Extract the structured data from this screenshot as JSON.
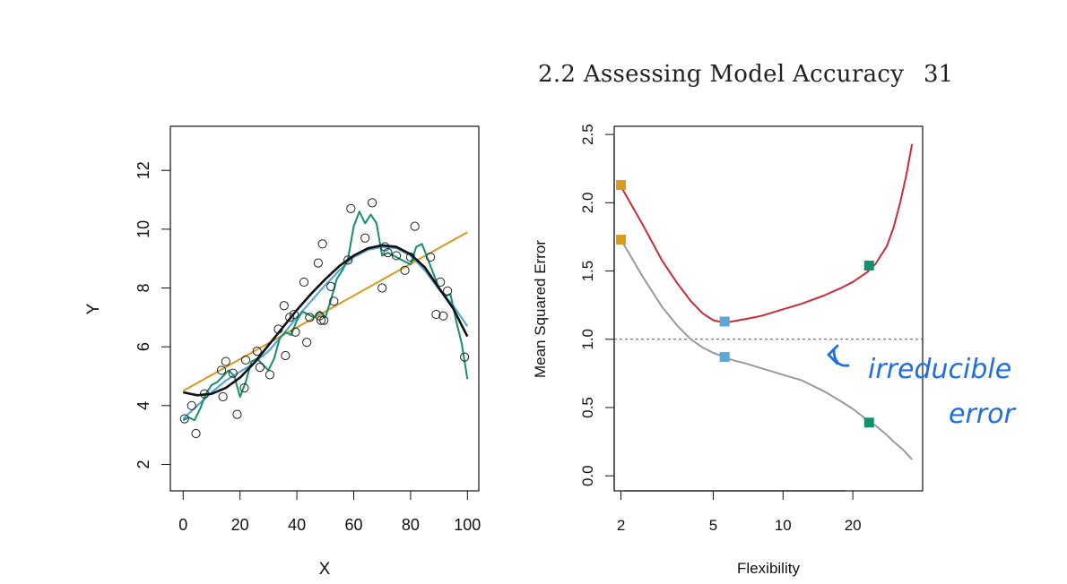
{
  "page_header": {
    "section": "2.2 Assessing Model Accuracy",
    "page_number": "31"
  },
  "colors": {
    "true_f": "#111111",
    "linear": "#d99a1f",
    "spline_smooth": "#5ba8d8",
    "spline_wiggly": "#13906e",
    "test_mse": "#cc2b37",
    "train_mse": "#9a9a9a",
    "irreducible": "#555555",
    "ink": "#1f6fe0"
  },
  "annotation": {
    "line1": "irreducible",
    "line2": "error",
    "arrow": "arrow-up-left"
  },
  "chart_data": [
    {
      "type": "scatter",
      "xlabel": "X",
      "ylabel": "Y",
      "xlim": [
        -4.5,
        104
      ],
      "ylim": [
        1.1,
        13.5
      ],
      "xticks": [
        "0",
        "20",
        "40",
        "60",
        "80",
        "100"
      ],
      "yticks": [
        "2",
        "4",
        "6",
        "8",
        "10",
        "12"
      ],
      "points": [
        [
          0.5,
          3.55
        ],
        [
          3,
          4.0
        ],
        [
          4.5,
          3.05
        ],
        [
          7.5,
          4.4
        ],
        [
          13.5,
          5.2
        ],
        [
          14,
          4.3
        ],
        [
          15,
          5.5
        ],
        [
          17.5,
          5.1
        ],
        [
          19,
          3.7
        ],
        [
          21.5,
          4.6
        ],
        [
          22,
          5.55
        ],
        [
          26,
          5.85
        ],
        [
          27,
          5.3
        ],
        [
          30.5,
          5.05
        ],
        [
          33.5,
          6.6
        ],
        [
          35.5,
          7.4
        ],
        [
          36,
          5.7
        ],
        [
          37.5,
          7.0
        ],
        [
          39,
          7.1
        ],
        [
          39.5,
          6.5
        ],
        [
          42.5,
          8.2
        ],
        [
          43.5,
          6.15
        ],
        [
          44.5,
          7.0
        ],
        [
          47.5,
          8.85
        ],
        [
          48,
          7.05
        ],
        [
          48.5,
          6.9
        ],
        [
          49,
          9.5
        ],
        [
          49.5,
          6.9
        ],
        [
          52,
          8.05
        ],
        [
          53,
          7.55
        ],
        [
          58,
          8.95
        ],
        [
          59,
          10.7
        ],
        [
          64,
          9.7
        ],
        [
          66.5,
          10.9
        ],
        [
          70,
          8.0
        ],
        [
          71,
          9.4
        ],
        [
          72,
          9.2
        ],
        [
          75,
          9.1
        ],
        [
          78,
          8.6
        ],
        [
          80,
          9.05
        ],
        [
          81.5,
          10.1
        ],
        [
          87,
          9.05
        ],
        [
          89,
          7.1
        ],
        [
          90.5,
          8.2
        ],
        [
          91.5,
          7.05
        ],
        [
          93,
          7.9
        ],
        [
          99,
          5.65
        ]
      ],
      "series": [
        {
          "role": "true_f",
          "x": [
            0,
            5,
            10,
            15,
            20,
            25,
            30,
            35,
            40,
            45,
            50,
            55,
            60,
            65,
            70,
            75,
            80,
            85,
            90,
            95,
            100
          ],
          "values": [
            4.45,
            4.35,
            4.4,
            4.6,
            4.95,
            5.45,
            6.05,
            6.65,
            7.25,
            7.8,
            8.3,
            8.75,
            9.1,
            9.35,
            9.45,
            9.4,
            9.15,
            8.7,
            8.0,
            7.3,
            6.35
          ]
        },
        {
          "role": "linear",
          "x": [
            0,
            100
          ],
          "values": [
            4.5,
            9.9
          ]
        },
        {
          "role": "smoothing_spline",
          "x": [
            0,
            5,
            10,
            15,
            20,
            25,
            30,
            35,
            40,
            45,
            50,
            55,
            60,
            65,
            70,
            75,
            80,
            85,
            90,
            95,
            100
          ],
          "values": [
            3.55,
            4.0,
            4.45,
            4.85,
            5.15,
            5.45,
            5.85,
            6.4,
            7.0,
            7.55,
            8.1,
            8.6,
            9.05,
            9.3,
            9.4,
            9.35,
            9.1,
            8.6,
            7.95,
            7.4,
            6.7
          ]
        },
        {
          "role": "wiggly_spline",
          "x": [
            0,
            2,
            4,
            6,
            8,
            10,
            12,
            14,
            16,
            18,
            20,
            22,
            24,
            26,
            28,
            30,
            32,
            34,
            36,
            38,
            40,
            42,
            44,
            46,
            48,
            50,
            52,
            54,
            56,
            58,
            60,
            62,
            64,
            66,
            68,
            70,
            72,
            74,
            76,
            78,
            80,
            82,
            84,
            86,
            88,
            90,
            92,
            94,
            96,
            98,
            100
          ],
          "values": [
            3.5,
            3.6,
            3.5,
            3.9,
            4.4,
            4.7,
            4.8,
            5.0,
            5.2,
            5.0,
            4.3,
            4.8,
            5.5,
            5.6,
            5.4,
            5.2,
            5.6,
            6.3,
            6.5,
            6.4,
            6.9,
            7.2,
            7.1,
            7.0,
            7.2,
            7.0,
            7.6,
            8.3,
            8.6,
            9.0,
            10.1,
            10.6,
            10.2,
            10.5,
            10.2,
            9.1,
            9.2,
            9.1,
            9.0,
            8.9,
            8.8,
            9.4,
            9.5,
            9.0,
            8.5,
            8.0,
            7.7,
            7.8,
            6.9,
            6.1,
            4.9
          ]
        }
      ]
    },
    {
      "type": "line",
      "xlabel": "Flexibility",
      "ylabel": "Mean Squared Error",
      "xscale": "log",
      "xlim": [
        1.87,
        40
      ],
      "ylim": [
        -0.11,
        2.56
      ],
      "xticks": [
        "2",
        "5",
        "10",
        "20"
      ],
      "yticks": [
        "0.0",
        "0.5",
        "1.0",
        "1.5",
        "2.0",
        "2.5"
      ],
      "irreducible_error": 1.0,
      "series": [
        {
          "role": "test_mse",
          "x": [
            2,
            2.5,
            3,
            3.5,
            4,
            4.5,
            5,
            5.6,
            6,
            7,
            8,
            10,
            12,
            15,
            18,
            20,
            23,
            25,
            28,
            30,
            32,
            34,
            36
          ],
          "values": [
            2.12,
            1.83,
            1.58,
            1.41,
            1.28,
            1.19,
            1.14,
            1.12,
            1.13,
            1.15,
            1.17,
            1.22,
            1.26,
            1.32,
            1.38,
            1.42,
            1.49,
            1.55,
            1.68,
            1.82,
            2.0,
            2.2,
            2.43
          ]
        },
        {
          "role": "train_mse",
          "x": [
            2,
            2.5,
            3,
            3.5,
            4,
            4.5,
            5,
            5.6,
            6,
            7,
            8,
            10,
            12,
            15,
            18,
            20,
            23,
            25,
            28,
            30,
            33,
            36
          ],
          "values": [
            1.73,
            1.45,
            1.24,
            1.1,
            1.0,
            0.94,
            0.9,
            0.87,
            0.85,
            0.82,
            0.79,
            0.74,
            0.7,
            0.62,
            0.54,
            0.49,
            0.41,
            0.37,
            0.3,
            0.25,
            0.19,
            0.12
          ]
        },
        {
          "role": "markers",
          "x": [
            2,
            5.6,
            23.5
          ],
          "test": [
            2.13,
            1.13,
            1.54
          ],
          "train": [
            1.73,
            0.87,
            0.39
          ],
          "colors": [
            "#d99a1f",
            "#5ba8d8",
            "#13906e"
          ]
        }
      ]
    }
  ]
}
